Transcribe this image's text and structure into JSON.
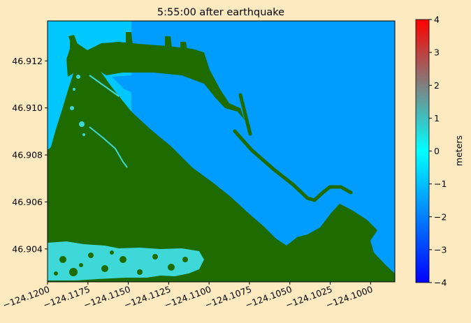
{
  "chart_data": {
    "type": "heatmap",
    "title": "5:55:00 after earthquake",
    "xlabel": "",
    "ylabel": "",
    "xlim": [
      -124.12,
      -124.0985
    ],
    "ylim": [
      46.9026,
      46.9137
    ],
    "xticks": [
      -124.12,
      -124.1175,
      -124.115,
      -124.1125,
      -124.11,
      -124.1075,
      -124.105,
      -124.1025,
      -124.1
    ],
    "xtick_labels": [
      "−124.1200",
      "−124.1175",
      "−124.1150",
      "−124.1125",
      "−124.1100",
      "−124.1075",
      "−124.1050",
      "−124.1025",
      "−124.1000"
    ],
    "yticks": [
      46.904,
      46.906,
      46.908,
      46.91,
      46.912
    ],
    "ytick_labels": [
      "46.904",
      "46.906",
      "46.908",
      "46.910",
      "46.912"
    ],
    "colorbar": {
      "label": "meters",
      "range": [
        -4,
        4
      ],
      "ticks": [
        -4,
        -3,
        -2,
        -1,
        0,
        1,
        2,
        3,
        4
      ],
      "tick_labels": [
        "−4",
        "−3",
        "−2",
        "−1",
        "0",
        "1",
        "2",
        "3",
        "4"
      ],
      "colors": [
        "#0000ff",
        "#00ffff",
        "#ff0000"
      ]
    },
    "surface_level_m": -1.3,
    "colors": {
      "land": "#1e6b00",
      "water": "#009dff",
      "shallow_water": "#00c8ff",
      "flooded_land": "#3ed8d8"
    }
  }
}
